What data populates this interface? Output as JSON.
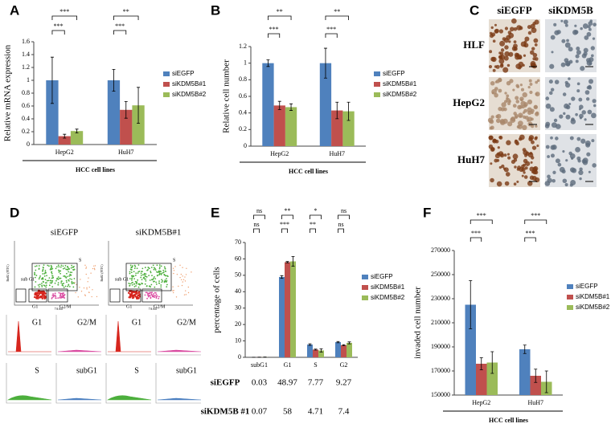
{
  "chart_data": [
    {
      "type": "bar",
      "panel": "A",
      "y_label": "Relative mRNA expression",
      "x_label": "HCC cell lines",
      "categories": [
        "HepG2",
        "HuH7"
      ],
      "series": [
        {
          "name": "siEGFP",
          "color": "#4f81bd",
          "values": [
            1,
            1
          ],
          "errors": [
            0.36,
            0.17
          ]
        },
        {
          "name": "siKDM5B#1",
          "color": "#c0504d",
          "values": [
            0.13,
            0.54
          ],
          "errors": [
            0.03,
            0.13
          ]
        },
        {
          "name": "siKDM5B#2",
          "color": "#9bbb59",
          "values": [
            0.21,
            0.61
          ],
          "errors": [
            0.03,
            0.28
          ]
        }
      ],
      "ylim": [
        0,
        1.6
      ],
      "yticks": [
        0,
        0.2,
        0.4,
        0.6,
        0.8,
        1,
        1.2,
        1.4,
        1.6
      ],
      "significance": [
        [
          "***",
          "***"
        ],
        [
          "***",
          "**"
        ]
      ]
    },
    {
      "type": "bar",
      "panel": "B",
      "y_label": "Relative cell number",
      "x_label": "HCC cell lines",
      "categories": [
        "HepG2",
        "HuH7"
      ],
      "series": [
        {
          "name": "siEGFP",
          "color": "#4f81bd",
          "values": [
            1,
            1
          ],
          "errors": [
            0.04,
            0.18
          ]
        },
        {
          "name": "siKDM5B#1",
          "color": "#c0504d",
          "values": [
            0.49,
            0.43
          ],
          "errors": [
            0.05,
            0.1
          ]
        },
        {
          "name": "siKDM5B#2",
          "color": "#9bbb59",
          "values": [
            0.47,
            0.42
          ],
          "errors": [
            0.04,
            0.11
          ]
        }
      ],
      "ylim": [
        0,
        1.2
      ],
      "yticks": [
        0,
        0.2,
        0.4,
        0.6,
        0.8,
        1,
        1.2
      ],
      "significance": [
        [
          "***",
          "**"
        ],
        [
          "***",
          "**"
        ]
      ]
    },
    {
      "type": "bar",
      "panel": "E",
      "y_label": "percentage of cells",
      "categories": [
        "subG1",
        "G1",
        "S",
        "G2"
      ],
      "series": [
        {
          "name": "siEGFP",
          "color": "#4f81bd",
          "values": [
            0.03,
            48.97,
            7.77,
            9.27
          ],
          "errors": [
            0.02,
            0.8,
            0.5,
            0.4
          ]
        },
        {
          "name": "siKDM5B#1",
          "color": "#c0504d",
          "values": [
            0.07,
            58,
            4.71,
            7.4
          ],
          "errors": [
            0.03,
            0.4,
            0.3,
            0.3
          ]
        },
        {
          "name": "siKDM5B#2",
          "color": "#9bbb59",
          "values": [
            0.1,
            58.5,
            4.2,
            8.8
          ],
          "errors": [
            0.05,
            3,
            1,
            0.6
          ]
        }
      ],
      "ylim": [
        0,
        70
      ],
      "yticks": [
        0,
        10,
        20,
        30,
        40,
        50,
        60,
        70
      ],
      "significance": [
        [
          "ns",
          "ns"
        ],
        [
          "***",
          "**"
        ],
        [
          "**",
          "*"
        ],
        [
          "ns",
          "ns"
        ]
      ],
      "table_rows": [
        "siEGFP",
        "siKDM5B #1"
      ]
    },
    {
      "type": "bar",
      "panel": "F",
      "y_label": "invaded cell number",
      "x_label": "HCC cell lines",
      "categories": [
        "HepG2",
        "HuH7"
      ],
      "series": [
        {
          "name": "siEGFP",
          "color": "#4f81bd",
          "values": [
            225000,
            188000
          ],
          "errors": [
            20000,
            3500
          ]
        },
        {
          "name": "siKDM5B#1",
          "color": "#c0504d",
          "values": [
            176000,
            166000
          ],
          "errors": [
            5000,
            5500
          ]
        },
        {
          "name": "siKDM5B#2",
          "color": "#9bbb59",
          "values": [
            177000,
            161000
          ],
          "errors": [
            9000,
            9000
          ]
        }
      ],
      "ylim": [
        150000,
        270000
      ],
      "yticks": [
        150000,
        170000,
        190000,
        210000,
        230000,
        250000,
        270000
      ],
      "significance": [
        [
          "***",
          "***"
        ],
        [
          "***",
          "***"
        ]
      ]
    }
  ],
  "panels": [
    {
      "label": "C",
      "columns": [
        "siEGFP",
        "siKDM5B"
      ],
      "rows": [
        "HLF",
        "HepG2",
        "HuH7"
      ]
    },
    {
      "label": "D",
      "x_label": "7AAD",
      "y_label": "BrdU (FITC)",
      "conditions": [
        {
          "name": "siEGFP",
          "gates": [
            "S",
            "sub G1",
            "G1",
            "G2/M"
          ],
          "histograms": [
            "G1",
            "G2/M",
            "S",
            "subG1"
          ]
        },
        {
          "name": "siKDM5B#1",
          "gates": [
            "S",
            "sub G1",
            "G1",
            "G2/M"
          ],
          "histograms": [
            "G1",
            "G2/M",
            "S",
            "subG1"
          ]
        }
      ]
    }
  ]
}
